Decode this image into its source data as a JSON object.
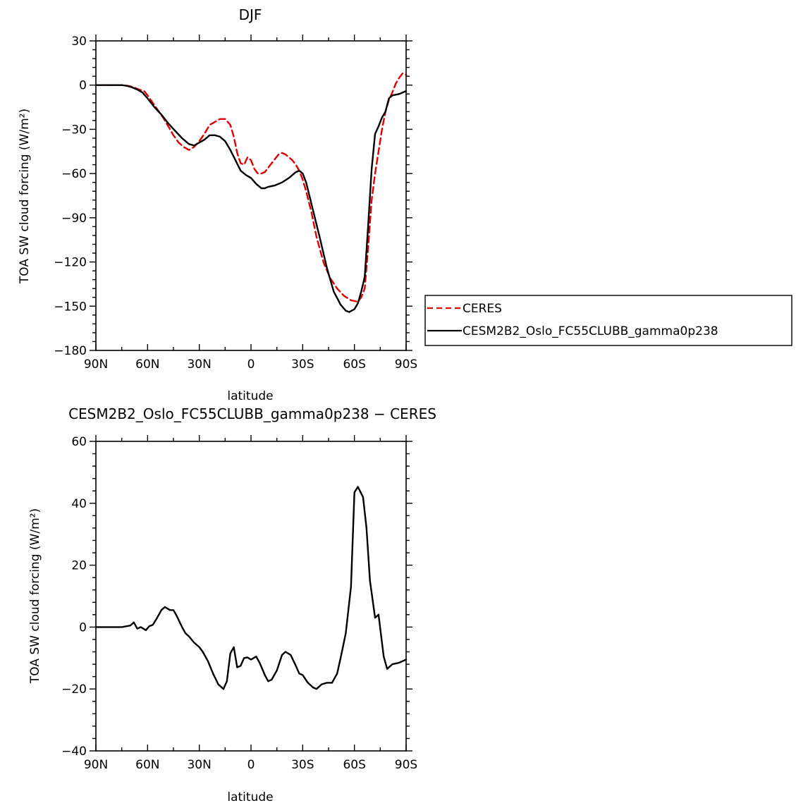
{
  "chart_data": [
    {
      "type": "line",
      "title": "DJF",
      "xlabel": "latitude",
      "ylabel": "TOA SW cloud forcing (W/m²)",
      "xlim": [
        90,
        -90
      ],
      "ylim": [
        -180,
        30
      ],
      "xticks": [
        90,
        60,
        30,
        0,
        -30,
        -60,
        -90
      ],
      "xtick_labels": [
        "90N",
        "60N",
        "30N",
        "0",
        "30S",
        "60S",
        "90S"
      ],
      "yticks": [
        30,
        0,
        -30,
        -60,
        -90,
        -120,
        -150,
        -180
      ],
      "ytick_labels": [
        "30",
        "0",
        "−30",
        "−60",
        "−90",
        "−120",
        "−150",
        "−180"
      ],
      "legend_position": "right",
      "series": [
        {
          "name": "CERES",
          "color": "#e00000",
          "dash": true,
          "x": [
            90,
            85,
            80,
            75,
            71,
            68,
            65,
            62,
            60,
            57,
            54,
            51,
            48,
            45,
            42,
            39,
            36,
            33,
            30,
            27,
            24,
            21,
            18,
            15,
            12,
            10,
            8,
            6,
            4,
            2,
            0,
            -2,
            -4,
            -6,
            -8,
            -10,
            -12,
            -14,
            -16,
            -18,
            -20,
            -22,
            -24,
            -26,
            -28,
            -30,
            -32,
            -35,
            -38,
            -42,
            -46,
            -50,
            -54,
            -58,
            -62,
            -64,
            -66,
            -68,
            -70,
            -72,
            -74,
            -76,
            -78,
            -80,
            -82,
            -84,
            -86,
            -88,
            -90
          ],
          "values": [
            0,
            0,
            0,
            0,
            -0.5,
            -1.5,
            -3,
            -4,
            -7,
            -12,
            -17,
            -22,
            -28,
            -34,
            -39,
            -42,
            -44,
            -42,
            -38,
            -33,
            -27,
            -25,
            -23,
            -23,
            -27,
            -35,
            -46,
            -53,
            -54,
            -49,
            -51,
            -57,
            -60,
            -60,
            -59,
            -56,
            -53,
            -50,
            -47,
            -46,
            -47,
            -49,
            -51,
            -54,
            -58,
            -64,
            -72,
            -86,
            -103,
            -120,
            -131,
            -138,
            -143,
            -146,
            -147,
            -144,
            -138,
            -110,
            -78,
            -60,
            -45,
            -30,
            -18,
            -10,
            -5,
            1,
            5,
            8,
            7
          ]
        },
        {
          "name": "CESM2B2_Oslo_FC55CLUBB_gamma0p238",
          "color": "#000000",
          "dash": false,
          "x": [
            90,
            85,
            80,
            75,
            72,
            69,
            66,
            63,
            60,
            56,
            52,
            48,
            44,
            40,
            36,
            33,
            30,
            27,
            24,
            21,
            18,
            15,
            12,
            9,
            6,
            3,
            0,
            -3,
            -6,
            -8,
            -10,
            -14,
            -18,
            -22,
            -26,
            -28,
            -30,
            -32,
            -36,
            -40,
            -44,
            -48,
            -52,
            -55,
            -57,
            -60,
            -62,
            -64,
            -66,
            -68,
            -70,
            -72,
            -74,
            -76,
            -78,
            -80,
            -82,
            -86,
            -90
          ],
          "values": [
            0,
            0,
            0,
            0,
            -0.5,
            -1.5,
            -3,
            -5,
            -9,
            -15,
            -20,
            -26,
            -31,
            -36,
            -40,
            -41,
            -39,
            -37,
            -34,
            -34,
            -35,
            -38,
            -44,
            -51,
            -58,
            -61,
            -63,
            -67,
            -70,
            -70,
            -69,
            -68,
            -66,
            -63,
            -59,
            -58,
            -60,
            -66,
            -85,
            -104,
            -124,
            -140,
            -149,
            -153,
            -154,
            -152,
            -148,
            -140,
            -130,
            -95,
            -57,
            -33,
            -28,
            -22,
            -18,
            -9,
            -7,
            -6,
            -4
          ]
        }
      ]
    },
    {
      "type": "line",
      "title": "CESM2B2_Oslo_FC55CLUBB_gamma0p238 − CERES",
      "xlabel": "latitude",
      "ylabel": "TOA SW cloud forcing (W/m²)",
      "xlim": [
        90,
        -90
      ],
      "ylim": [
        -40,
        60
      ],
      "xticks": [
        90,
        60,
        30,
        0,
        -30,
        -60,
        -90
      ],
      "xtick_labels": [
        "90N",
        "60N",
        "30N",
        "0",
        "30S",
        "60S",
        "90S"
      ],
      "yticks": [
        60,
        40,
        20,
        0,
        -20,
        -40
      ],
      "ytick_labels": [
        "60",
        "40",
        "20",
        "0",
        "−20",
        "−40"
      ],
      "series": [
        {
          "name": "CESM2B2_Oslo_FC55CLUBB_gamma0p238 − CERES",
          "color": "#000000",
          "dash": false,
          "x": [
            90,
            85,
            80,
            75,
            72,
            70,
            68,
            66,
            64,
            61,
            59,
            57,
            55,
            52,
            50,
            47,
            45,
            43,
            40,
            38,
            36,
            33,
            30,
            28,
            25,
            22,
            19,
            16,
            14,
            12,
            10,
            8,
            6,
            4,
            2,
            0,
            -3,
            -5,
            -8,
            -10,
            -12,
            -15,
            -18,
            -20,
            -23,
            -26,
            -28,
            -30,
            -33,
            -36,
            -38,
            -41,
            -44,
            -47,
            -50,
            -52,
            -55,
            -58,
            -60,
            -62,
            -65,
            -67,
            -69,
            -72,
            -74,
            -77,
            -79,
            -82,
            -86,
            -88,
            -90
          ],
          "values": [
            0,
            0,
            0,
            0,
            0.3,
            0.5,
            1.5,
            -0.5,
            0,
            -1,
            0.3,
            0.7,
            2.5,
            5.5,
            6.5,
            5.5,
            5.5,
            3.5,
            0,
            -2,
            -3,
            -5,
            -6.5,
            -8,
            -11,
            -15,
            -18.5,
            -20,
            -17.5,
            -8.5,
            -6.5,
            -13,
            -12.5,
            -10,
            -9.8,
            -10.5,
            -9.5,
            -11.5,
            -15.5,
            -17.5,
            -17,
            -14,
            -9,
            -8,
            -9,
            -12.5,
            -15,
            -15.5,
            -18,
            -19.5,
            -20,
            -18.5,
            -18,
            -18,
            -15,
            -10,
            -2,
            13,
            43.5,
            45.3,
            42,
            32,
            15,
            3,
            4,
            -9.5,
            -13.5,
            -12,
            -11.5,
            -11,
            -10.5
          ]
        }
      ]
    }
  ]
}
